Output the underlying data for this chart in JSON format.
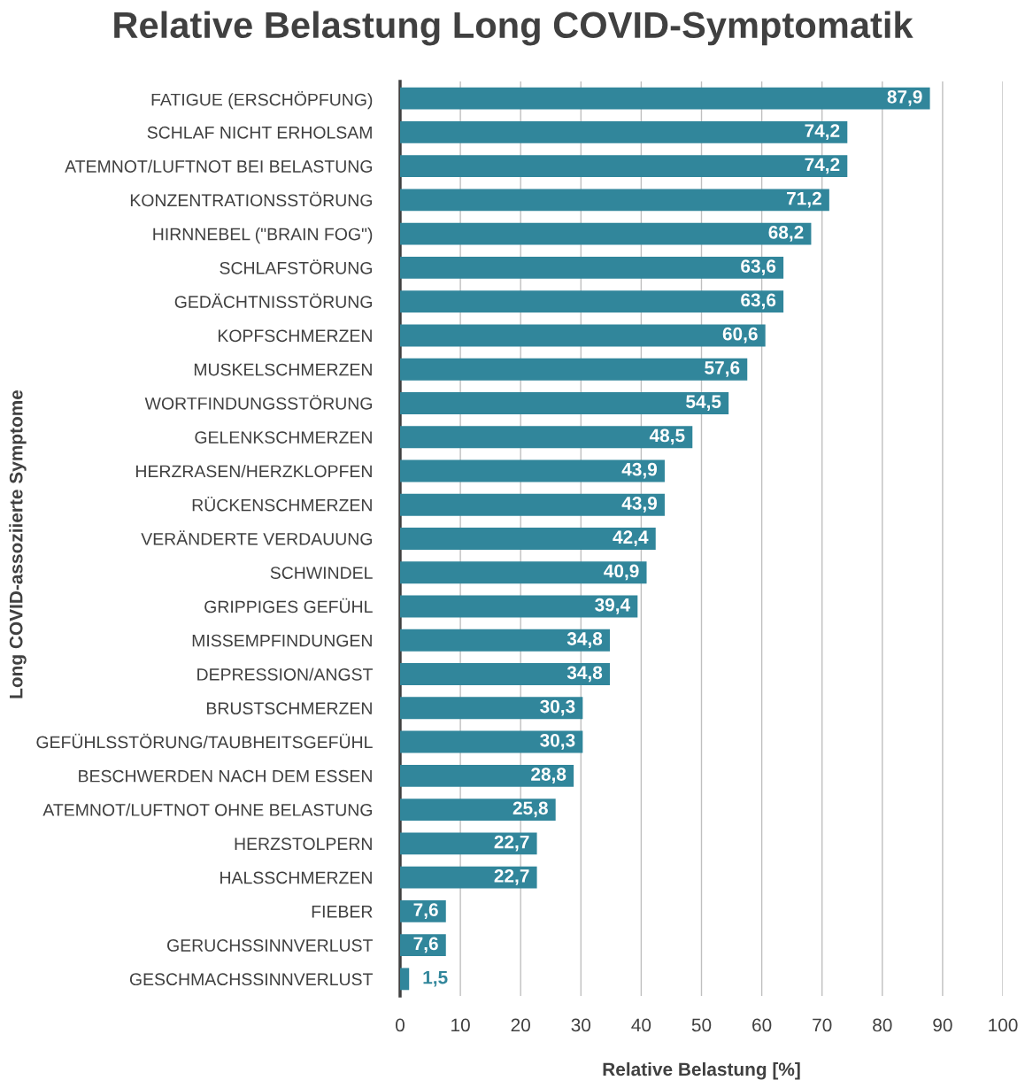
{
  "chart_data": {
    "type": "bar",
    "orientation": "horizontal",
    "title": "Relative Belastung Long COVID-Symptomatik",
    "xlabel": "Relative Belastung [%]",
    "ylabel": "Long COVID-assoziierte Symptome",
    "categories": [
      "FATIGUE (ERSCHÖPFUNG)",
      "SCHLAF NICHT ERHOLSAM",
      "ATEMNOT/LUFTNOT BEI BELASTUNG",
      "KONZENTRATIONSSTÖRUNG",
      "HIRNNEBEL (\"BRAIN FOG\")",
      "SCHLAFSTÖRUNG",
      "GEDÄCHTNISSTÖRUNG",
      "KOPFSCHMERZEN",
      "MUSKELSCHMERZEN",
      "WORTFINDUNGSSTÖRUNG",
      "GELENKSCHMERZEN",
      "HERZRASEN/HERZKLOPFEN",
      "RÜCKENSCHMERZEN",
      "VERÄNDERTE VERDAUUNG",
      "SCHWINDEL",
      "GRIPPIGES GEFÜHL",
      "MISSEMPFINDUNGEN",
      "DEPRESSION/ANGST",
      "BRUSTSCHMERZEN",
      "GEFÜHLSSTÖRUNG/TAUBHEITSGEFÜHL",
      "BESCHWERDEN NACH DEM ESSEN",
      "ATEMNOT/LUFTNOT OHNE BELASTUNG",
      "HERZSTOLPERN",
      "HALSSCHMERZEN",
      "FIEBER",
      "GERUCHSSINNVERLUST",
      "GESCHMACHSSINNVERLUST"
    ],
    "values": [
      87.9,
      74.2,
      74.2,
      71.2,
      68.2,
      63.6,
      63.6,
      60.6,
      57.6,
      54.5,
      48.5,
      43.9,
      43.9,
      42.4,
      40.9,
      39.4,
      34.8,
      34.8,
      30.3,
      30.3,
      28.8,
      25.8,
      22.7,
      22.7,
      7.6,
      7.6,
      1.5
    ],
    "value_labels": [
      "87,9",
      "74,2",
      "74,2",
      "71,2",
      "68,2",
      "63,6",
      "63,6",
      "60,6",
      "57,6",
      "54,5",
      "48,5",
      "43,9",
      "43,9",
      "42,4",
      "40,9",
      "39,4",
      "34,8",
      "34,8",
      "30,3",
      "30,3",
      "28,8",
      "25,8",
      "22,7",
      "22,7",
      "7,6",
      "7,6",
      "1,5"
    ],
    "color": "#31869b",
    "xlim": [
      0,
      100
    ],
    "xticks": [
      0,
      10,
      20,
      30,
      40,
      50,
      60,
      70,
      80,
      90,
      100
    ],
    "grid": "x"
  }
}
